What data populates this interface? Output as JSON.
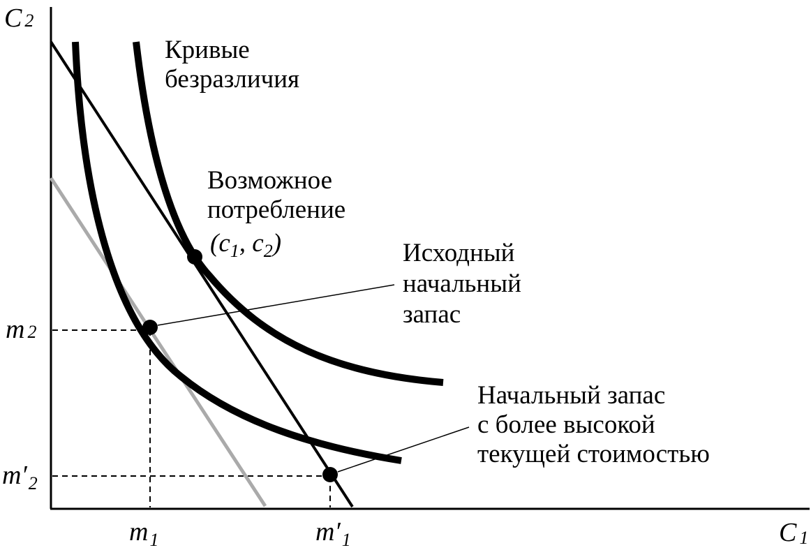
{
  "axes": {
    "y_label": "C",
    "y_sub": "2",
    "x_label": "C",
    "x_sub": "1"
  },
  "ticks": {
    "m1": {
      "main": "m",
      "sub": "1"
    },
    "m1p": {
      "main": "m′",
      "sub": "1"
    },
    "m2": {
      "main": "m",
      "sub": "2"
    },
    "m2p": {
      "main": "m′",
      "sub": "2"
    }
  },
  "labels": {
    "indiff": [
      "Кривые",
      "безразличия"
    ],
    "consumption": [
      "Возможное",
      "потребление"
    ],
    "consumption_point": {
      "open": "(c",
      "s1": "1",
      "mid": ", c",
      "s2": "2",
      "close": ")"
    },
    "original": [
      "Исходный",
      "начальный",
      "запас"
    ],
    "higher": [
      "Начальный запас",
      "с более высокой",
      "текущей стоимостью"
    ]
  },
  "colors": {
    "ink": "#000000",
    "old_budget_line": "#aaaaaa"
  }
}
